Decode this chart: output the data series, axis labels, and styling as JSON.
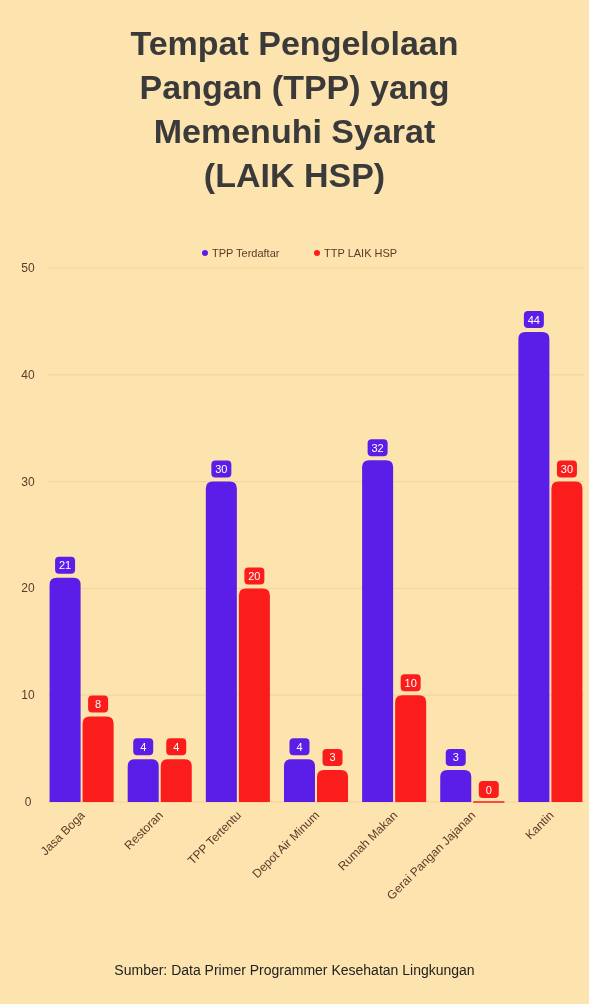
{
  "chart_data": {
    "type": "bar",
    "title": "Tempat Pengelolaan Pangan (TPP) yang Memenuhi Syarat (LAIK HSP)",
    "categories": [
      "Jasa Boga",
      "Restoran",
      "TPP Tertentu",
      "Depot Air Minum",
      "Rumah Makan",
      "Gerai Pangan Jajanan",
      "Kantin"
    ],
    "series": [
      {
        "name": "TPP Terdaftar",
        "color": "#5b1ee8",
        "values": [
          21,
          4,
          30,
          4,
          32,
          3,
          44
        ]
      },
      {
        "name": "TTP LAIK HSP",
        "color": "#fb1c1c",
        "values": [
          8,
          4,
          20,
          3,
          10,
          0,
          30
        ]
      }
    ],
    "ylim": [
      0,
      50
    ],
    "yticks": [
      0,
      10,
      20,
      30,
      40,
      50
    ],
    "grid": "y",
    "legend": "top",
    "data_labels": true,
    "annotations": [
      "Sumber: Data Primer Programmer Kesehatan Lingkungan"
    ]
  }
}
